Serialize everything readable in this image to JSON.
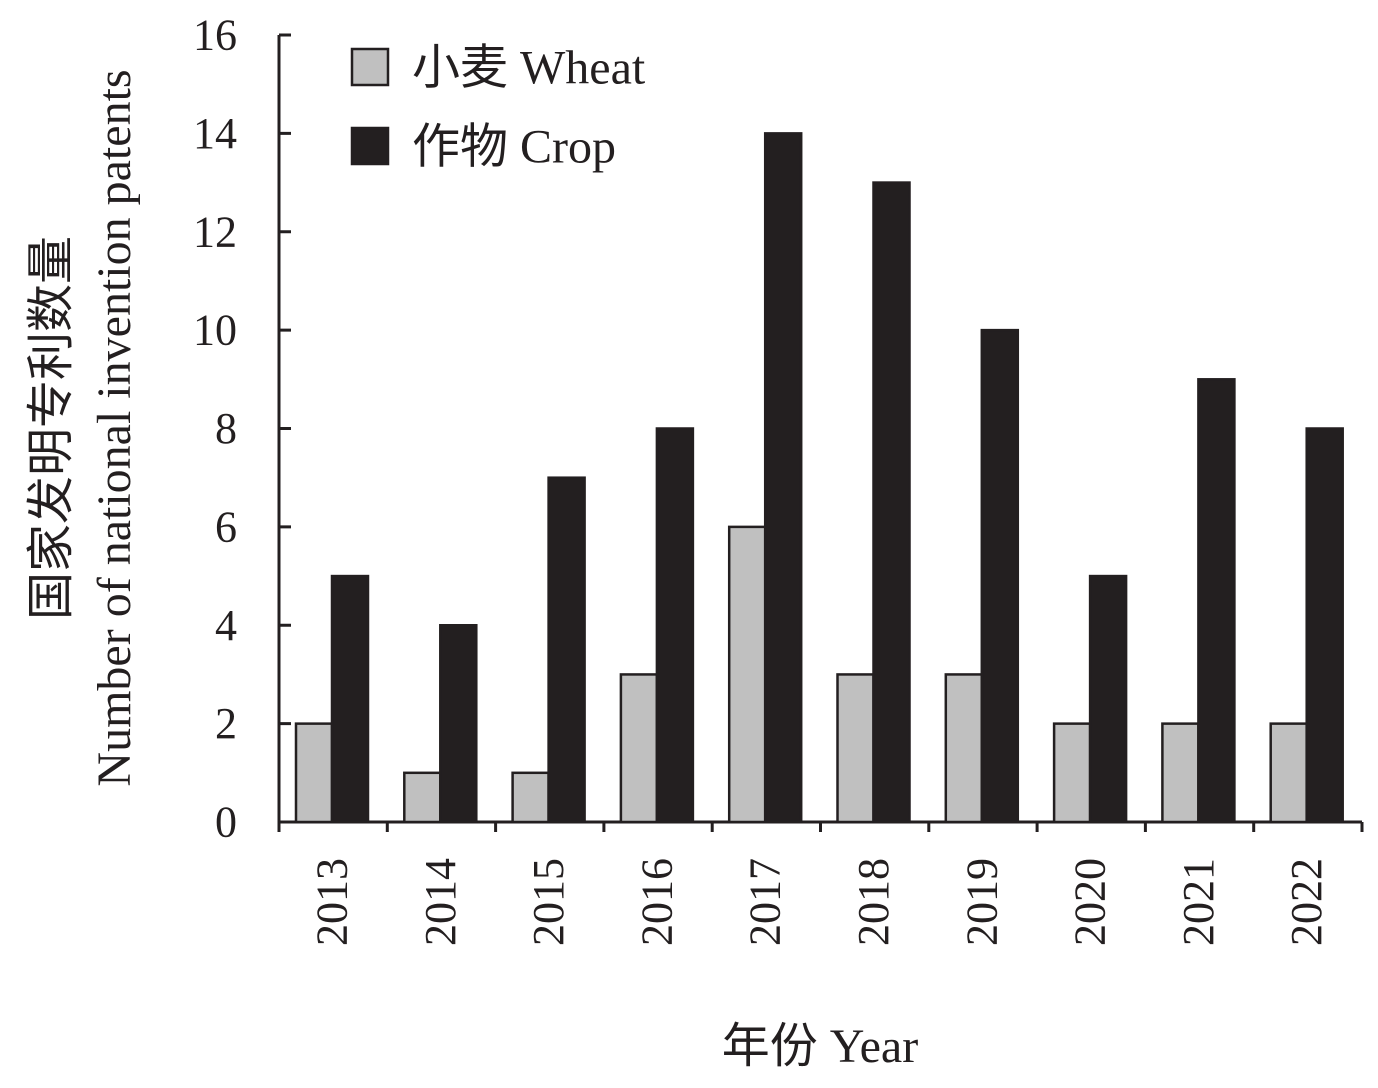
{
  "chart_data": {
    "type": "bar",
    "title": "",
    "xlabel": "年份 Year",
    "ylabel_cn": "国家发明专利数量",
    "ylabel_en": "Number of national invention patents",
    "categories": [
      "2013",
      "2014",
      "2015",
      "2016",
      "2017",
      "2018",
      "2019",
      "2020",
      "2021",
      "2022"
    ],
    "series": [
      {
        "name": "小麦 Wheat",
        "color": "#c0c0c0",
        "values": [
          2,
          1,
          1,
          3,
          6,
          3,
          3,
          2,
          2,
          2
        ]
      },
      {
        "name": "作物 Crop",
        "color": "#231f20",
        "values": [
          5,
          4,
          7,
          8,
          14,
          13,
          10,
          5,
          9,
          8
        ]
      }
    ],
    "ylim": [
      0,
      16
    ],
    "yticks": [
      0,
      2,
      4,
      6,
      8,
      10,
      12,
      14,
      16
    ],
    "grid": false,
    "legend_position": "top-left"
  }
}
